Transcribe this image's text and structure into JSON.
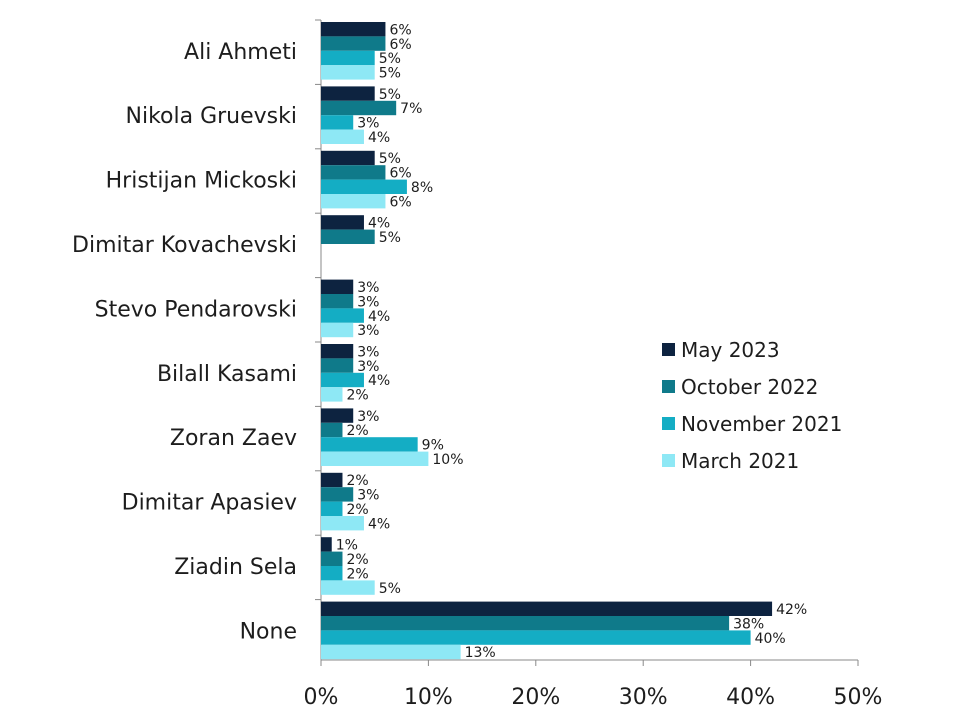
{
  "chart_data": {
    "type": "bar",
    "orientation": "horizontal",
    "categories": [
      "Ali Ahmeti",
      "Nikola Gruevski",
      "Hristijan Mickoski",
      "Dimitar Kovachevski",
      "Stevo Pendarovski",
      "Bilall Kasami",
      "Zoran Zaev",
      "Dimitar Apasiev",
      "Ziadin Sela",
      "None"
    ],
    "series": [
      {
        "name": "May 2023",
        "color": "#0d2340",
        "values": [
          6,
          5,
          5,
          4,
          3,
          3,
          3,
          2,
          1,
          42
        ],
        "labels": [
          "6%",
          "5%",
          "5%",
          "4%",
          "3%",
          "3%",
          "3%",
          "2%",
          "1%",
          "42%"
        ]
      },
      {
        "name": "October 2022",
        "color": "#0f7a8a",
        "values": [
          6,
          7,
          6,
          5,
          3,
          3,
          2,
          3,
          2,
          38
        ],
        "labels": [
          "6%",
          "7%",
          "6%",
          "5%",
          "3%",
          "3%",
          "2%",
          "3%",
          "2%",
          "38%"
        ]
      },
      {
        "name": "November 2021",
        "color": "#14adc4",
        "values": [
          5,
          3,
          8,
          null,
          4,
          4,
          9,
          2,
          2,
          40
        ],
        "labels": [
          "5%",
          "3%",
          "8%",
          "",
          "4%",
          "4%",
          "9%",
          "2%",
          "2%",
          "40%"
        ]
      },
      {
        "name": "March 2021",
        "color": "#8ee8f5",
        "values": [
          5,
          4,
          6,
          null,
          3,
          2,
          10,
          4,
          5,
          13
        ],
        "labels": [
          "5%",
          "4%",
          "6%",
          "",
          "3%",
          "2%",
          "10%",
          "4%",
          "5%",
          "13%"
        ]
      }
    ],
    "xlim": [
      0,
      50
    ],
    "xticks": [
      0,
      10,
      20,
      30,
      40,
      50
    ],
    "xtick_labels": [
      "0%",
      "10%",
      "20%",
      "30%",
      "40%",
      "50%"
    ],
    "grid": false,
    "legend_position": "right",
    "title": "",
    "xlabel": "",
    "ylabel": ""
  }
}
